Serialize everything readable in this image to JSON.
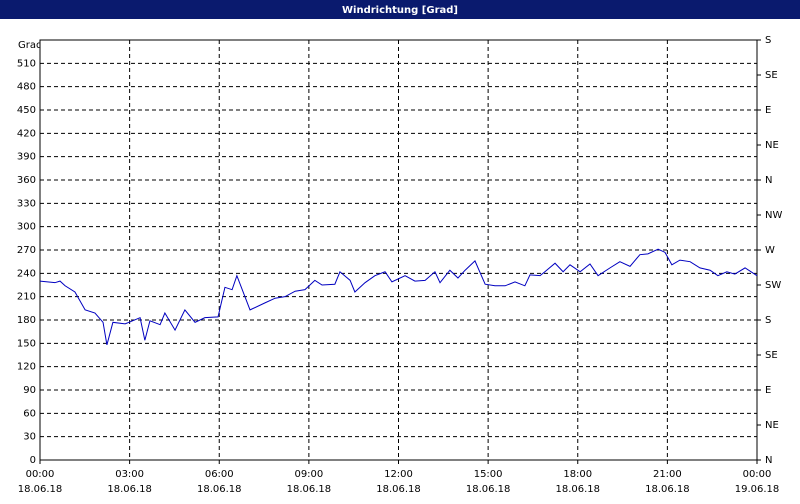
{
  "chart_data": {
    "type": "line",
    "title": "Windrichtung [Grad]",
    "ylabel": "Grad",
    "x": [
      0,
      0.5,
      0.67,
      0.84,
      1.17,
      1.51,
      1.84,
      2.11,
      2.24,
      2.44,
      2.85,
      3.35,
      3.51,
      3.68,
      4.02,
      4.18,
      4.52,
      4.85,
      5.19,
      5.52,
      5.96,
      6.19,
      6.43,
      6.59,
      6.86,
      7.03,
      7.53,
      7.87,
      8.2,
      8.54,
      8.87,
      9.2,
      9.44,
      9.87,
      10.04,
      10.38,
      10.54,
      10.88,
      11.21,
      11.55,
      11.78,
      12.22,
      12.55,
      12.89,
      13.22,
      13.39,
      13.72,
      13.99,
      14.23,
      14.56,
      14.9,
      15.23,
      15.57,
      15.9,
      16.23,
      16.4,
      16.74,
      16.9,
      17.24,
      17.51,
      17.74,
      18.08,
      18.41,
      18.68,
      19.08,
      19.41,
      19.75,
      20.08,
      20.35,
      20.69,
      20.92,
      21.15,
      21.42,
      21.76,
      22.09,
      22.43,
      22.69,
      22.99,
      23.26,
      23.6,
      24
    ],
    "series": [
      {
        "name": "Windrichtung",
        "color": "#0000c0",
        "values": [
          230,
          228,
          230,
          224,
          216,
          193,
          189,
          177,
          148,
          177,
          175,
          183,
          154,
          179,
          174,
          189,
          167,
          193,
          177,
          183,
          184,
          222,
          219,
          237,
          210,
          193,
          202,
          208,
          210,
          217,
          219,
          231,
          225,
          226,
          242,
          231,
          216,
          228,
          237,
          242,
          229,
          237,
          230,
          231,
          242,
          228,
          244,
          234,
          244,
          256,
          226,
          224,
          224,
          229,
          224,
          238,
          237,
          242,
          253,
          242,
          251,
          242,
          252,
          237,
          247,
          255,
          249,
          264,
          265,
          271,
          267,
          251,
          257,
          255,
          247,
          244,
          237,
          242,
          239,
          247,
          237
        ]
      }
    ],
    "xlim": [
      0,
      24
    ],
    "xticks": [
      {
        "value": 0,
        "label": "00:00"
      },
      {
        "value": 3,
        "label": "03:00"
      },
      {
        "value": 6,
        "label": "06:00"
      },
      {
        "value": 9,
        "label": "09:00"
      },
      {
        "value": 12,
        "label": "12:00"
      },
      {
        "value": 15,
        "label": "15:00"
      },
      {
        "value": 18,
        "label": "18:00"
      },
      {
        "value": 21,
        "label": "21:00"
      },
      {
        "value": 24,
        "label": "00:00"
      }
    ],
    "xtick_dates": [
      "18.06.18",
      "18.06.18",
      "18.06.18",
      "18.06.18",
      "18.06.18",
      "18.06.18",
      "18.06.18",
      "18.06.18",
      "19.06.18"
    ],
    "ylim": [
      0,
      540
    ],
    "yticks": [
      0,
      30,
      60,
      90,
      120,
      150,
      180,
      210,
      240,
      270,
      300,
      330,
      360,
      390,
      420,
      450,
      480,
      510
    ],
    "y2lim": [
      0,
      540
    ],
    "y2ticks": [
      {
        "value": 0,
        "label": "N"
      },
      {
        "value": 45,
        "label": "NE"
      },
      {
        "value": 90,
        "label": "E"
      },
      {
        "value": 135,
        "label": "SE"
      },
      {
        "value": 180,
        "label": "S"
      },
      {
        "value": 225,
        "label": "SW"
      },
      {
        "value": 270,
        "label": "W"
      },
      {
        "value": 315,
        "label": "NW"
      },
      {
        "value": 360,
        "label": "N"
      },
      {
        "value": 405,
        "label": "NE"
      },
      {
        "value": 450,
        "label": "E"
      },
      {
        "value": 495,
        "label": "SE"
      },
      {
        "value": 540,
        "label": "S"
      }
    ],
    "grid": true
  }
}
